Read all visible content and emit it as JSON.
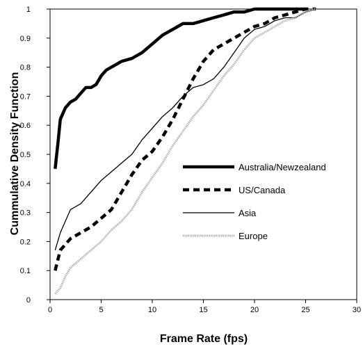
{
  "chart_data": {
    "type": "line",
    "title": "",
    "xlabel": "Frame Rate (fps)",
    "ylabel": "Cummulative Density Function",
    "xlim": [
      0,
      30
    ],
    "ylim": [
      0,
      1
    ],
    "xticks": [
      "0",
      "5",
      "10",
      "15",
      "20",
      "25",
      "30"
    ],
    "yticks": [
      "0",
      "0.1",
      "0.2",
      "0.3",
      "0.4",
      "0.5",
      "0.6",
      "0.7",
      "0.8",
      "0.9",
      "1"
    ],
    "grid": false,
    "legend_position": "right",
    "series": [
      {
        "name": "Australia/Newzealand",
        "style": "thick-solid",
        "color": "#000000",
        "x": [
          0.5,
          0.8,
          1.0,
          1.5,
          2.0,
          2.5,
          3.0,
          3.5,
          4.0,
          4.5,
          5.0,
          5.5,
          6.0,
          6.5,
          7.0,
          8.0,
          9.0,
          10.0,
          11.0,
          12.0,
          13.0,
          14.0,
          15.0,
          16.0,
          17.0,
          18.0,
          19.0,
          20.0,
          25.0
        ],
        "y": [
          0.45,
          0.55,
          0.62,
          0.66,
          0.68,
          0.69,
          0.71,
          0.73,
          0.73,
          0.74,
          0.77,
          0.79,
          0.8,
          0.81,
          0.82,
          0.83,
          0.85,
          0.88,
          0.91,
          0.93,
          0.95,
          0.95,
          0.96,
          0.97,
          0.98,
          0.99,
          0.99,
          1.0,
          1.0
        ]
      },
      {
        "name": "US/Canada",
        "style": "thick-dashed",
        "color": "#000000",
        "x": [
          0.5,
          1.0,
          1.5,
          2.0,
          3.0,
          4.0,
          5.0,
          6.0,
          7.0,
          8.0,
          9.0,
          10.0,
          11.0,
          12.0,
          13.0,
          14.0,
          15.0,
          16.0,
          17.0,
          18.0,
          19.0,
          20.0,
          21.0,
          22.0,
          23.0,
          24.0,
          25.0,
          26.0
        ],
        "y": [
          0.1,
          0.17,
          0.19,
          0.21,
          0.23,
          0.25,
          0.28,
          0.31,
          0.37,
          0.43,
          0.48,
          0.51,
          0.56,
          0.62,
          0.69,
          0.76,
          0.82,
          0.86,
          0.88,
          0.9,
          0.92,
          0.94,
          0.95,
          0.97,
          0.98,
          0.99,
          1.0,
          1.0
        ]
      },
      {
        "name": "Asia",
        "style": "thin-solid",
        "color": "#000000",
        "x": [
          0.5,
          1.0,
          1.5,
          2.0,
          3.0,
          4.0,
          5.0,
          6.0,
          7.0,
          8.0,
          9.0,
          10.0,
          11.0,
          12.0,
          13.0,
          14.0,
          15.0,
          16.0,
          17.0,
          18.0,
          19.0,
          20.0,
          21.0,
          22.0,
          23.0,
          24.0,
          25.0,
          26.0
        ],
        "y": [
          0.17,
          0.23,
          0.27,
          0.31,
          0.33,
          0.37,
          0.41,
          0.44,
          0.47,
          0.5,
          0.55,
          0.59,
          0.63,
          0.66,
          0.7,
          0.73,
          0.74,
          0.76,
          0.8,
          0.85,
          0.9,
          0.93,
          0.94,
          0.96,
          0.97,
          0.97,
          0.99,
          1.0
        ]
      },
      {
        "name": "Europe",
        "style": "light-gray",
        "color": "#b4b4b4",
        "x": [
          0.5,
          1.0,
          1.5,
          2.0,
          3.0,
          4.0,
          5.0,
          6.0,
          7.0,
          8.0,
          9.0,
          10.0,
          11.0,
          12.0,
          13.0,
          14.0,
          15.0,
          16.0,
          17.0,
          18.0,
          19.0,
          20.0,
          21.0,
          22.0,
          23.0,
          24.0,
          25.0,
          26.0
        ],
        "y": [
          0.02,
          0.04,
          0.08,
          0.11,
          0.14,
          0.17,
          0.2,
          0.24,
          0.27,
          0.31,
          0.37,
          0.42,
          0.47,
          0.53,
          0.58,
          0.63,
          0.67,
          0.72,
          0.77,
          0.81,
          0.86,
          0.9,
          0.92,
          0.94,
          0.96,
          0.97,
          0.99,
          1.0
        ]
      }
    ]
  }
}
